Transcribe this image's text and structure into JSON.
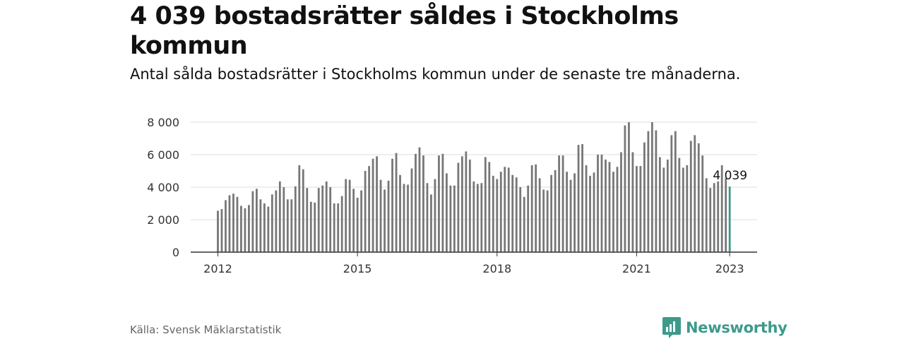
{
  "title": "4 039 bostadsrätter såldes i Stockholms kommun",
  "subtitle": "Antal sålda bostadsrätter i Stockholms kommun under de senaste tre månaderna.",
  "source": "Källa: Svensk Mäklarstatistik",
  "brand": "Newsworthy",
  "colors": {
    "bar": "#777777",
    "highlight": "#3d9a8b",
    "grid": "#dddddd",
    "axis": "#333333",
    "brand": "#3d9a8b"
  },
  "chart_data": {
    "type": "bar",
    "title": "",
    "xlabel": "",
    "ylabel": "",
    "ylim": [
      0,
      8000
    ],
    "yticks": [
      0,
      2000,
      4000,
      6000,
      8000
    ],
    "ytick_labels": [
      "0",
      "2 000",
      "4 000",
      "6 000",
      "8 000"
    ],
    "xticks": [
      "2012",
      "2015",
      "2018",
      "2021",
      "2023"
    ],
    "start": "2012-01",
    "highlight_label": "4 039",
    "grid": true,
    "values": [
      2550,
      2650,
      3200,
      3500,
      3600,
      3400,
      2850,
      2700,
      2900,
      3750,
      3900,
      3250,
      3000,
      2800,
      3550,
      3800,
      4350,
      4000,
      3250,
      3250,
      4050,
      5350,
      5100,
      3950,
      3100,
      3050,
      3950,
      4100,
      4350,
      4000,
      3000,
      3000,
      3450,
      4500,
      4450,
      3900,
      3350,
      3800,
      5000,
      5300,
      5750,
      5900,
      4450,
      3850,
      4400,
      5750,
      6100,
      4750,
      4200,
      4150,
      5150,
      6050,
      6450,
      5950,
      4250,
      3550,
      4500,
      5950,
      6050,
      4850,
      4100,
      4100,
      5500,
      5900,
      6200,
      5700,
      4350,
      4200,
      4250,
      5850,
      5550,
      4700,
      4500,
      4950,
      5250,
      5200,
      4750,
      4600,
      4000,
      3400,
      4100,
      5350,
      5400,
      4550,
      3850,
      3800,
      4750,
      5050,
      5950,
      5950,
      4950,
      4450,
      4850,
      6600,
      6650,
      5350,
      4700,
      4900,
      6000,
      6000,
      5700,
      5550,
      4950,
      5250,
      6150,
      7800,
      8000,
      6150,
      5300,
      5300,
      6750,
      7450,
      8000,
      7500,
      5850,
      5200,
      5700,
      7200,
      7450,
      5800,
      5200,
      5350,
      6850,
      7200,
      6700,
      5950,
      4550,
      3950,
      4250,
      4350,
      5350,
      4550,
      4039
    ]
  }
}
